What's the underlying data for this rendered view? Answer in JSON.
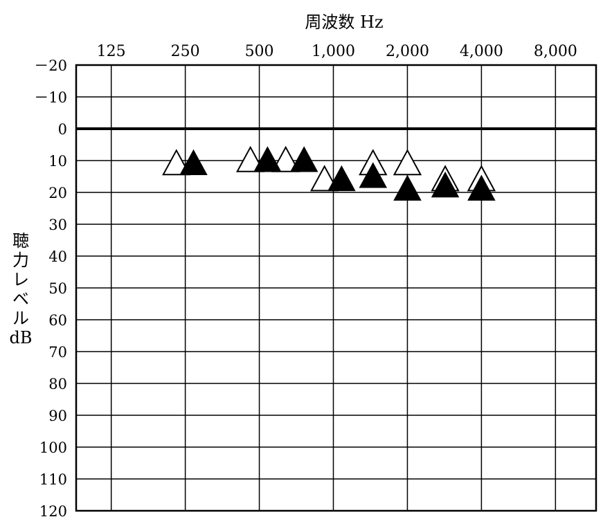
{
  "chart_data": {
    "type": "scatter",
    "title": "",
    "xlabel": "周波数 Hz",
    "ylabel_lines": [
      "聴",
      "力",
      "レ",
      "ベ",
      "ル",
      "dB"
    ],
    "x_scale": "log2",
    "x_ticks": [
      {
        "value": 125,
        "label": "125"
      },
      {
        "value": 250,
        "label": "250"
      },
      {
        "value": 500,
        "label": "500"
      },
      {
        "value": 1000,
        "label": "1,000"
      },
      {
        "value": 2000,
        "label": "2,000"
      },
      {
        "value": 4000,
        "label": "4,000"
      },
      {
        "value": 8000,
        "label": "8,000"
      }
    ],
    "xlim": [
      90,
      11700
    ],
    "ylim": [
      -20,
      120
    ],
    "y_inverted": true,
    "y_ticks": [
      {
        "value": -20,
        "label": "－20"
      },
      {
        "value": -10,
        "label": "－10"
      },
      {
        "value": 0,
        "label": "0"
      },
      {
        "value": 10,
        "label": "10"
      },
      {
        "value": 20,
        "label": "20"
      },
      {
        "value": 30,
        "label": "30"
      },
      {
        "value": 40,
        "label": "40"
      },
      {
        "value": 50,
        "label": "50"
      },
      {
        "value": 60,
        "label": "60"
      },
      {
        "value": 70,
        "label": "70"
      },
      {
        "value": 80,
        "label": "80"
      },
      {
        "value": 90,
        "label": "90"
      },
      {
        "value": 100,
        "label": "100"
      },
      {
        "value": 110,
        "label": "110"
      },
      {
        "value": 120,
        "label": "120"
      }
    ],
    "reference_line": 0,
    "grid": true,
    "series": [
      {
        "marker": "open-triangle",
        "color": "#000000",
        "points": [
          {
            "x": 230,
            "y": 11
          },
          {
            "x": 460,
            "y": 10
          },
          {
            "x": 640,
            "y": 10
          },
          {
            "x": 920,
            "y": 16
          },
          {
            "x": 1450,
            "y": 11
          },
          {
            "x": 2000,
            "y": 11
          },
          {
            "x": 2850,
            "y": 16
          },
          {
            "x": 4000,
            "y": 16
          }
        ]
      },
      {
        "marker": "filled-triangle",
        "color": "#000000",
        "points": [
          {
            "x": 270,
            "y": 11
          },
          {
            "x": 540,
            "y": 10
          },
          {
            "x": 760,
            "y": 10
          },
          {
            "x": 1080,
            "y": 16
          },
          {
            "x": 1450,
            "y": 15
          },
          {
            "x": 2000,
            "y": 19
          },
          {
            "x": 2850,
            "y": 18
          },
          {
            "x": 4000,
            "y": 19
          }
        ]
      }
    ]
  }
}
